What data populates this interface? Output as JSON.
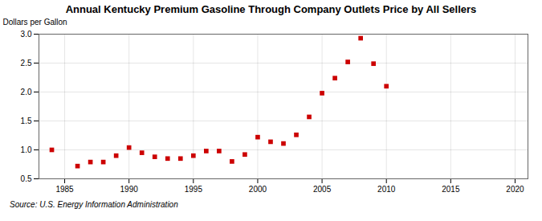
{
  "chart_data": {
    "type": "scatter",
    "title": "Annual Kentucky Premium Gasoline Through Company Outlets Price by All Sellers",
    "ylabel": "Dollars per Gallon",
    "source": "Source: U.S. Energy Information Administration",
    "x": [
      1984,
      1986,
      1987,
      1988,
      1989,
      1990,
      1991,
      1992,
      1993,
      1994,
      1995,
      1996,
      1997,
      1998,
      1999,
      2000,
      2001,
      2002,
      2003,
      2004,
      2005,
      2006,
      2007,
      2008,
      2009,
      2010
    ],
    "values": [
      1.0,
      0.72,
      0.79,
      0.79,
      0.9,
      1.04,
      0.95,
      0.88,
      0.85,
      0.85,
      0.9,
      0.98,
      0.98,
      0.8,
      0.92,
      1.22,
      1.14,
      1.11,
      1.26,
      1.57,
      1.98,
      2.24,
      2.52,
      2.93,
      2.49,
      2.1
    ],
    "color": "#cc0000",
    "marker": "square",
    "xlim": [
      1983,
      2021
    ],
    "ylim": [
      0.5,
      3.0
    ],
    "xticks": [
      1985,
      1990,
      1995,
      2000,
      2005,
      2010,
      2015,
      2020
    ],
    "yticks": [
      0.5,
      {
        "value": 1.0,
        "label": "1.0"
      },
      1.5,
      {
        "value": 2.0,
        "label": "2.0"
      },
      2.5,
      {
        "value": 3.0,
        "label": "3.0"
      }
    ],
    "grid": true
  }
}
